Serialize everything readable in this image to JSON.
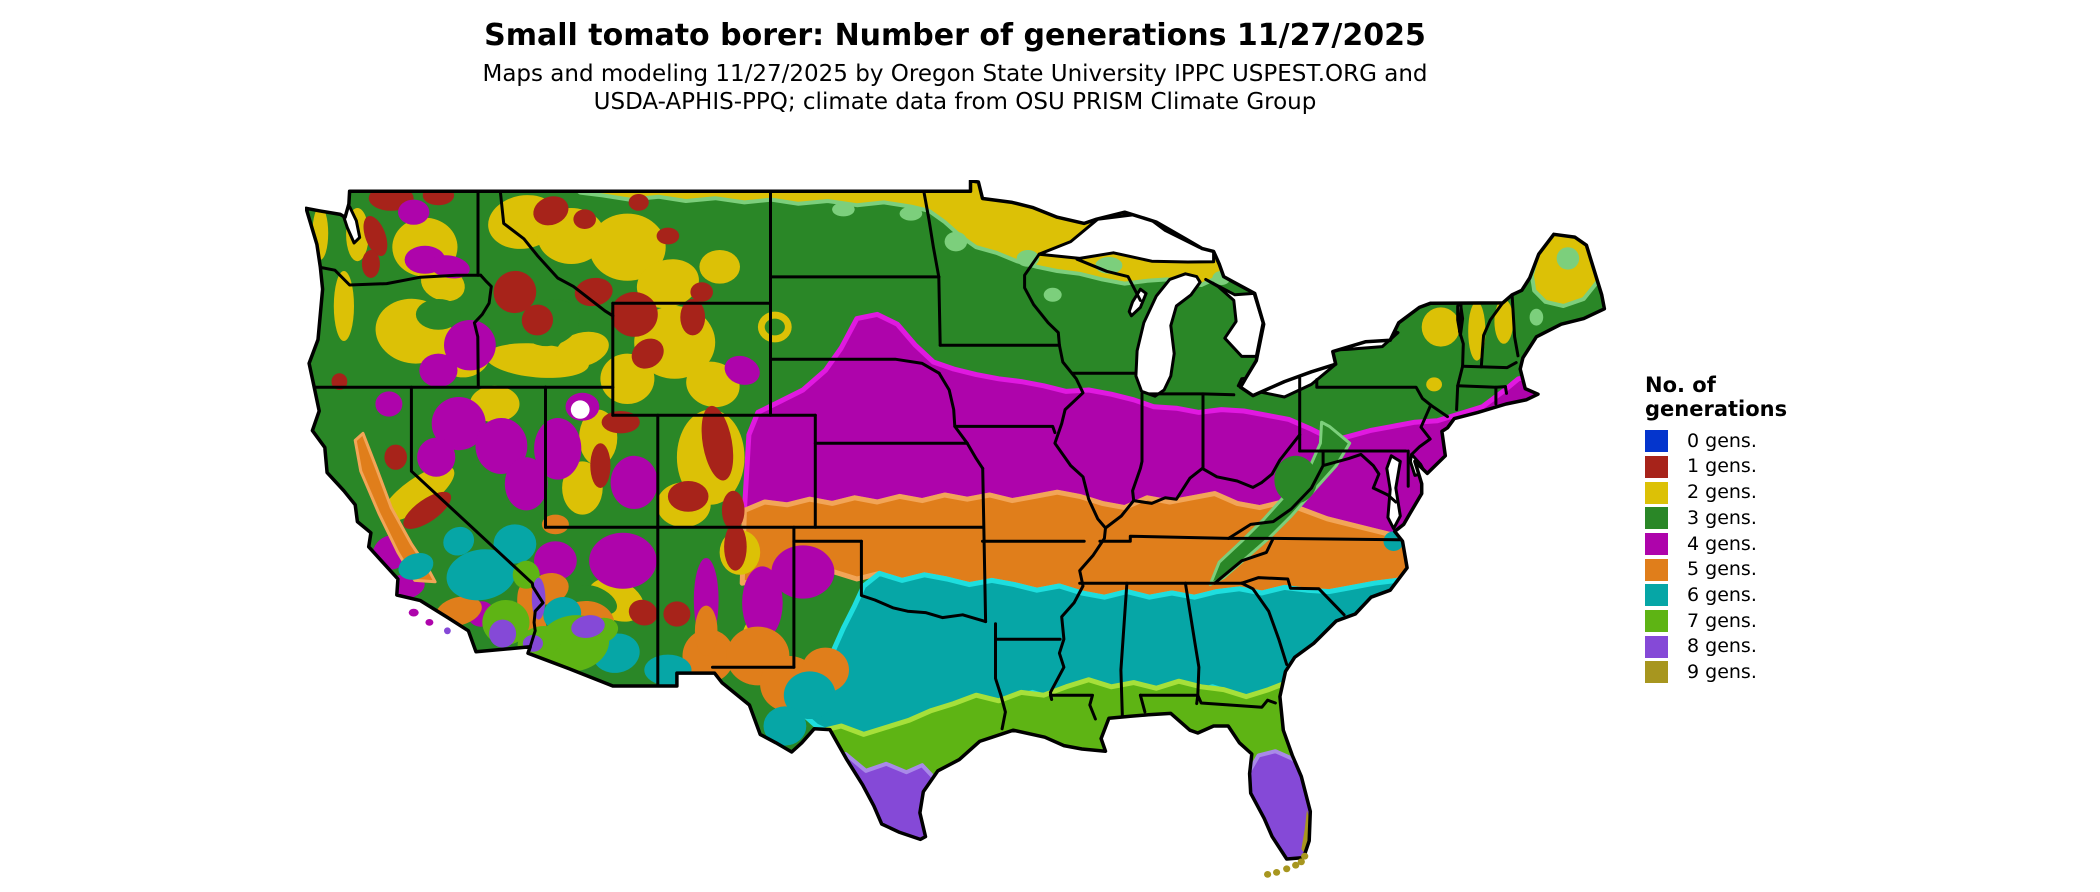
{
  "title": "Small tomato borer: Number of generations 11/27/2025",
  "subtitle": {
    "line1": "Maps and modeling 11/27/2025 by Oregon State University IPPC USPEST.ORG and",
    "line2": "USDA-APHIS-PPQ; climate data from OSU PRISM Climate Group"
  },
  "legend": {
    "title_line1": "No. of",
    "title_line2": "generations",
    "items": [
      {
        "label": "0 gens.",
        "color": "#0435cd"
      },
      {
        "label": "1 gens.",
        "color": "#a7231a"
      },
      {
        "label": "2 gens.",
        "color": "#dcc106"
      },
      {
        "label": "3 gens.",
        "color": "#2a8727"
      },
      {
        "label": "4 gens.",
        "color": "#ae04ab"
      },
      {
        "label": "5 gens.",
        "color": "#e07e1b"
      },
      {
        "label": "6 gens.",
        "color": "#06a6a6"
      },
      {
        "label": "7 gens.",
        "color": "#5eb414"
      },
      {
        "label": "8 gens.",
        "color": "#8549d7"
      },
      {
        "label": "9 gens.",
        "color": "#a7961f"
      }
    ]
  },
  "map": {
    "name": "Contiguous United States choropleth of small tomato borer generations",
    "region": "CONUS",
    "background_color": "#ffffff",
    "border_color": "#000000",
    "lake_color": "#ffffff",
    "fringe_colors": {
      "green": "#7ccf7c",
      "magenta": "#e019e0",
      "orange": "#f2a557",
      "teal": "#1edede",
      "chartreuse": "#a6e03a",
      "purple": "#a98ae8"
    },
    "band_order_north_to_south": [
      "2 gens.",
      "3 gens.",
      "4 gens.",
      "5 gens.",
      "6 gens.",
      "7 gens.",
      "8 gens.",
      "9 gens."
    ]
  }
}
